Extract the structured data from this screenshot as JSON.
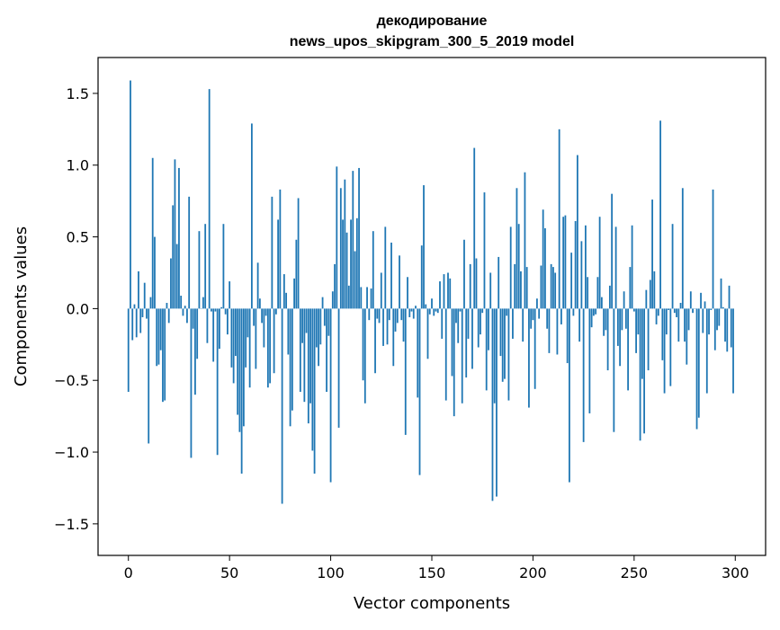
{
  "chart_data": {
    "type": "bar",
    "title": [
      "декодирование",
      "news_upos_skipgram_300_5_2019 model"
    ],
    "xlabel": "Vector components",
    "ylabel": "Components values",
    "xlim": [
      -15,
      315
    ],
    "ylim": [
      -1.72,
      1.75
    ],
    "xticks": [
      0,
      50,
      100,
      150,
      200,
      250,
      300
    ],
    "yticks": [
      {
        "value": 1.5,
        "label": "1.5"
      },
      {
        "value": 1.0,
        "label": "1.0"
      },
      {
        "value": 0.5,
        "label": "0.5"
      },
      {
        "value": 0.0,
        "label": "0.0"
      },
      {
        "value": -0.5,
        "label": "−0.5"
      },
      {
        "value": -1.0,
        "label": "−1.0"
      },
      {
        "value": -1.5,
        "label": "−1.5"
      }
    ],
    "grid": false,
    "bar_color": "#1f77b4",
    "x_start": 0,
    "values": [
      -0.58,
      1.59,
      -0.22,
      0.03,
      -0.2,
      0.26,
      -0.17,
      -0.06,
      0.18,
      -0.07,
      -0.94,
      0.08,
      1.05,
      0.5,
      -0.4,
      -0.39,
      -0.29,
      -0.65,
      -0.64,
      0.04,
      -0.1,
      0.35,
      0.72,
      1.04,
      0.45,
      0.98,
      0.09,
      -0.05,
      0.02,
      -0.1,
      0.78,
      -1.04,
      -0.14,
      -0.6,
      -0.35,
      0.54,
      0.0,
      0.08,
      0.59,
      -0.24,
      1.53,
      -0.02,
      -0.37,
      -0.02,
      -1.02,
      -0.28,
      0.01,
      0.59,
      -0.04,
      -0.18,
      0.19,
      -0.41,
      -0.52,
      -0.33,
      -0.74,
      -0.86,
      -1.15,
      -0.82,
      -0.41,
      -0.2,
      -0.55,
      1.29,
      -0.12,
      -0.42,
      0.32,
      0.07,
      -0.1,
      -0.27,
      -0.05,
      -0.55,
      -0.52,
      0.78,
      -0.45,
      -0.04,
      0.62,
      0.83,
      -1.36,
      0.24,
      0.11,
      -0.32,
      -0.82,
      -0.71,
      0.21,
      0.48,
      0.77,
      -0.58,
      -0.24,
      -0.65,
      -0.17,
      -0.8,
      -0.66,
      -0.99,
      -1.15,
      -0.27,
      -0.4,
      -0.25,
      0.08,
      -0.12,
      -0.58,
      -0.19,
      -1.21,
      0.12,
      0.31,
      0.99,
      -0.83,
      0.84,
      0.62,
      0.9,
      0.53,
      0.16,
      0.62,
      0.96,
      0.4,
      0.63,
      0.98,
      0.15,
      -0.5,
      -0.66,
      0.15,
      -0.08,
      0.14,
      0.54,
      -0.45,
      -0.07,
      -0.1,
      0.25,
      -0.26,
      0.57,
      -0.25,
      -0.08,
      0.46,
      -0.4,
      -0.16,
      -0.1,
      0.37,
      -0.08,
      -0.23,
      -0.88,
      0.22,
      -0.06,
      -0.02,
      -0.07,
      0.02,
      -0.62,
      -1.16,
      0.44,
      0.86,
      0.03,
      -0.35,
      -0.04,
      0.07,
      -0.05,
      -0.02,
      -0.03,
      0.19,
      -0.21,
      0.24,
      -0.64,
      0.25,
      0.21,
      -0.47,
      -0.75,
      -0.1,
      -0.24,
      -0.02,
      -0.66,
      0.48,
      -0.48,
      -0.21,
      0.31,
      -0.42,
      1.12,
      0.35,
      -0.27,
      -0.18,
      -0.03,
      0.81,
      -0.57,
      -0.29,
      0.25,
      -1.34,
      -0.66,
      -1.31,
      0.36,
      -0.33,
      -0.51,
      -0.49,
      -0.05,
      -0.64,
      0.57,
      -0.21,
      0.31,
      0.84,
      0.59,
      0.26,
      -0.23,
      0.95,
      0.29,
      -0.69,
      -0.14,
      -0.08,
      -0.56,
      0.07,
      -0.07,
      0.3,
      0.69,
      0.56,
      -0.14,
      -0.31,
      0.31,
      0.29,
      0.25,
      -0.32,
      1.25,
      -0.11,
      0.64,
      0.65,
      -0.38,
      -1.21,
      0.39,
      -0.05,
      0.61,
      1.07,
      -0.23,
      0.47,
      -0.93,
      0.58,
      0.22,
      -0.73,
      -0.13,
      -0.05,
      -0.04,
      0.22,
      0.64,
      0.08,
      -0.19,
      -0.15,
      -0.43,
      0.16,
      0.8,
      -0.86,
      0.57,
      -0.26,
      -0.4,
      -0.15,
      0.12,
      -0.14,
      -0.57,
      0.29,
      0.58,
      -0.02,
      -0.31,
      -0.18,
      -0.92,
      -0.49,
      -0.87,
      0.13,
      -0.43,
      0.2,
      0.76,
      0.26,
      -0.11,
      -0.05,
      1.31,
      -0.36,
      -0.59,
      -0.18,
      -0.01,
      -0.54,
      0.59,
      -0.03,
      -0.06,
      -0.23,
      0.04,
      0.84,
      -0.23,
      -0.39,
      -0.15,
      0.12,
      -0.03,
      0.0,
      -0.84,
      -0.76,
      0.11,
      -0.17,
      0.05,
      -0.59,
      -0.18,
      -0.01,
      0.83,
      -0.29,
      -0.15,
      -0.12,
      0.21,
      0.01,
      -0.23,
      -0.3,
      0.16,
      -0.27,
      -0.59
    ]
  }
}
